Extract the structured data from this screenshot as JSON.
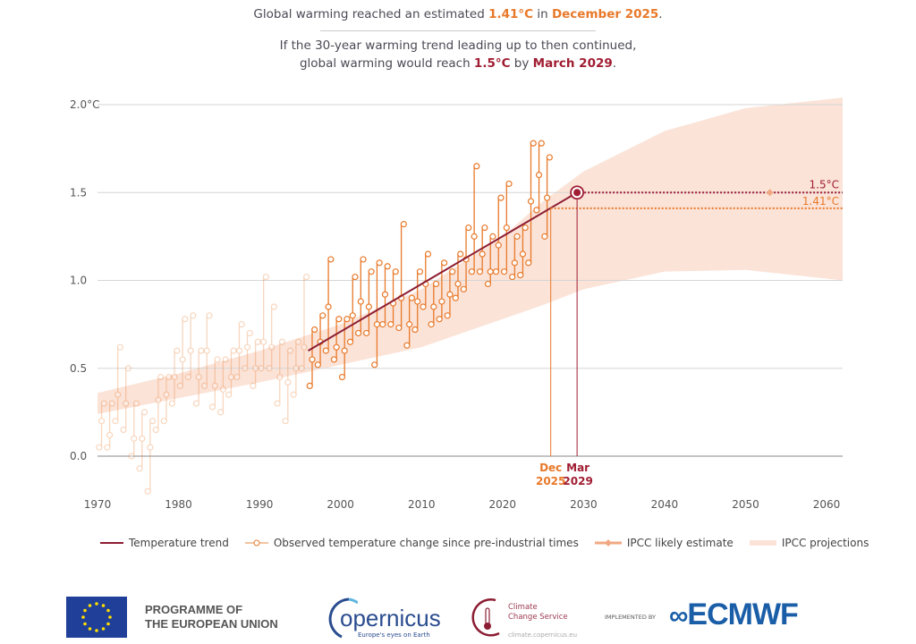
{
  "header": {
    "line1_pre": "Global warming reached an estimated ",
    "line1_value": "1.41°C",
    "line1_mid": " in ",
    "line1_date": "December 2025",
    "line1_end": ".",
    "line2": "If the 30-year warming trend leading up to then continued,",
    "line3_pre": "global warming would reach ",
    "line3_value": "1.5°C",
    "line3_mid": " by ",
    "line3_date": "March 2029",
    "line3_end": "."
  },
  "chart_data": {
    "type": "line",
    "xlim": [
      1970,
      2062
    ],
    "ylim": [
      -0.25,
      2.05
    ],
    "x_ticks": [
      1970,
      1980,
      1990,
      2000,
      2010,
      2020,
      2030,
      2040,
      2050,
      2060
    ],
    "y_ticks": [
      {
        "value": 0.0,
        "label": "0.0"
      },
      {
        "value": 0.5,
        "label": "0.5"
      },
      {
        "value": 1.0,
        "label": "1.0"
      },
      {
        "value": 1.5,
        "label": "1.5"
      },
      {
        "value": 2.0,
        "label": "2.0°C"
      }
    ],
    "grid": true,
    "colors": {
      "observed": "#e8792a",
      "trend": "#8c1d32",
      "projection_band": "#fbe3d8",
      "threshold": "#a01d32"
    },
    "observed": {
      "name": "Observed temperature change since pre-industrial times",
      "highlight_from_year": 1996,
      "years": [
        1970,
        1971,
        1972,
        1973,
        1974,
        1975,
        1976,
        1977,
        1978,
        1979,
        1980,
        1981,
        1982,
        1983,
        1984,
        1985,
        1986,
        1987,
        1988,
        1989,
        1990,
        1991,
        1992,
        1993,
        1994,
        1995,
        1996,
        1997,
        1998,
        1999,
        2000,
        2001,
        2002,
        2003,
        2004,
        2005,
        2006,
        2007,
        2008,
        2009,
        2010,
        2011,
        2012,
        2013,
        2014,
        2015,
        2016,
        2017,
        2018,
        2019,
        2020,
        2021,
        2022,
        2023,
        2024,
        2025
      ],
      "mean": [
        0.2,
        0.12,
        0.35,
        0.3,
        0.1,
        0.1,
        0.05,
        0.32,
        0.35,
        0.45,
        0.55,
        0.6,
        0.45,
        0.6,
        0.4,
        0.38,
        0.45,
        0.6,
        0.62,
        0.5,
        0.65,
        0.62,
        0.45,
        0.42,
        0.5,
        0.62,
        0.55,
        0.65,
        0.85,
        0.62,
        0.6,
        0.8,
        0.88,
        0.85,
        0.75,
        0.92,
        0.87,
        0.9,
        0.75,
        0.88,
        0.98,
        0.85,
        0.88,
        0.92,
        0.98,
        1.12,
        1.25,
        1.15,
        1.05,
        1.2,
        1.3,
        1.1,
        1.15,
        1.45,
        1.6,
        1.47
      ],
      "min": [
        0.05,
        0.05,
        0.2,
        0.15,
        0.0,
        -0.07,
        -0.2,
        0.15,
        0.2,
        0.3,
        0.4,
        0.45,
        0.3,
        0.4,
        0.28,
        0.25,
        0.35,
        0.45,
        0.5,
        0.4,
        0.5,
        0.5,
        0.3,
        0.2,
        0.35,
        0.5,
        0.4,
        0.52,
        0.6,
        0.55,
        0.45,
        0.65,
        0.7,
        0.7,
        0.52,
        0.75,
        0.75,
        0.73,
        0.63,
        0.72,
        0.85,
        0.75,
        0.78,
        0.8,
        0.9,
        0.95,
        1.05,
        1.05,
        0.98,
        1.05,
        1.05,
        1.02,
        1.03,
        1.1,
        1.4,
        1.25
      ],
      "max": [
        0.3,
        0.3,
        0.62,
        0.5,
        0.3,
        0.25,
        0.2,
        0.45,
        0.45,
        0.6,
        0.78,
        0.8,
        0.6,
        0.8,
        0.55,
        0.55,
        0.6,
        0.75,
        0.7,
        0.65,
        1.02,
        0.85,
        0.65,
        0.6,
        0.65,
        1.02,
        0.72,
        0.8,
        1.12,
        0.78,
        0.78,
        1.02,
        1.12,
        1.05,
        1.1,
        1.08,
        1.05,
        1.32,
        0.9,
        1.05,
        1.15,
        0.98,
        1.1,
        1.05,
        1.15,
        1.3,
        1.65,
        1.3,
        1.25,
        1.47,
        1.55,
        1.25,
        1.3,
        1.78,
        1.78,
        1.7
      ]
    },
    "trend": {
      "name": "Temperature trend",
      "start": [
        1996,
        0.6
      ],
      "end": [
        2029.2,
        1.5
      ]
    },
    "projection": {
      "name": "IPCC projections",
      "years": [
        1970,
        1980,
        1990,
        2000,
        2010,
        2020,
        2025,
        2030,
        2040,
        2050,
        2060,
        2062
      ],
      "lower": [
        0.24,
        0.33,
        0.42,
        0.52,
        0.62,
        0.78,
        0.86,
        0.95,
        1.05,
        1.06,
        1.01,
        1.0
      ],
      "upper": [
        0.36,
        0.47,
        0.6,
        0.75,
        0.95,
        1.25,
        1.45,
        1.62,
        1.85,
        1.98,
        2.03,
        2.04
      ]
    },
    "ipcc_estimate": {
      "name": "IPCC likely estimate",
      "year": 2053,
      "value": 1.5
    },
    "threshold": {
      "value": 1.5,
      "label": "1.5°C"
    },
    "current": {
      "value": 1.41,
      "label": "1.41°C",
      "year": 2025.95,
      "date_line1": "Dec",
      "date_line2": "2025"
    },
    "crossing": {
      "year": 2029.2,
      "value": 1.5,
      "date_line1": "Mar",
      "date_line2": "2029"
    }
  },
  "legend": {
    "trend": "Temperature trend",
    "observed": "Observed temperature change since pre-industrial times",
    "ipcc_estimate": "IPCC likely estimate",
    "projections": "IPCC projections"
  },
  "footer": {
    "eu_line1": "PROGRAMME OF",
    "eu_line2": "THE EUROPEAN UNION",
    "copernicus": "opernicus",
    "copernicus_tagline": "Europe's eyes on Earth",
    "c3s_line1": "Climate",
    "c3s_line2": "Change Service",
    "c3s_url": "climate.copernicus.eu",
    "implemented_by": "IMPLEMENTED BY",
    "ecmwf": "ECMWF"
  }
}
